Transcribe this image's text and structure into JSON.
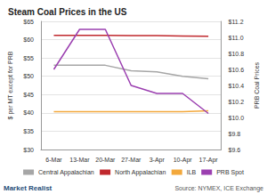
{
  "chart_data": {
    "type": "line",
    "title": "Steam Coal Prices in the US",
    "y_label": "$ per MT except for PRB",
    "y2_label": "PRB Coal Prices",
    "source": "Source: NYMEX, ICE Exchange",
    "annotations": [
      "Market Realist"
    ],
    "categories": [
      "6-Mar",
      "13-Mar",
      "20-Mar",
      "27-Mar",
      "3-Apr",
      "10-Apr",
      "17-Apr"
    ],
    "series": [
      {
        "name": "Central Appalachian",
        "color": "#a6a6a6",
        "values": [
          53.0,
          53.0,
          53.0,
          51.5,
          51.2,
          50.0,
          49.3
        ]
      },
      {
        "name": "North Appalachian",
        "color": "#c0282d",
        "values": [
          61.2,
          61.2,
          61.2,
          61.1,
          61.1,
          61.0,
          60.9
        ]
      },
      {
        "name": "ILB",
        "color": "#f3a83b",
        "values": [
          40.3,
          40.3,
          40.3,
          40.3,
          40.3,
          40.3,
          40.6
        ]
      },
      {
        "name": "PRB Spot",
        "color": "#9b3fb0",
        "axis": "y2",
        "values": [
          10.6,
          11.1,
          11.1,
          10.4,
          10.3,
          10.3,
          10.05
        ]
      }
    ],
    "ylim": [
      30,
      65
    ],
    "yticks": [
      {
        "value": 30,
        "label": "$30"
      },
      {
        "value": 35,
        "label": "$35"
      },
      {
        "value": 40,
        "label": "$40"
      },
      {
        "value": 45,
        "label": "$45"
      },
      {
        "value": 50,
        "label": "$50"
      },
      {
        "value": 55,
        "label": "$55"
      },
      {
        "value": 60,
        "label": "$60"
      },
      {
        "value": 65,
        "label": "$65"
      }
    ],
    "y2lim": [
      9.6,
      11.2
    ],
    "y2ticks": [
      {
        "value": 9.6,
        "label": "$9.6"
      },
      {
        "value": 9.8,
        "label": "$9.8"
      },
      {
        "value": 10.0,
        "label": "$10.0"
      },
      {
        "value": 10.2,
        "label": "$10.2"
      },
      {
        "value": 10.4,
        "label": "$10.4"
      },
      {
        "value": 10.6,
        "label": "$10.6"
      },
      {
        "value": 10.8,
        "label": "$10.8"
      },
      {
        "value": 11.0,
        "label": "$11.0"
      },
      {
        "value": 11.2,
        "label": "$11.2"
      }
    ],
    "grid": true,
    "legend": "bottom"
  }
}
